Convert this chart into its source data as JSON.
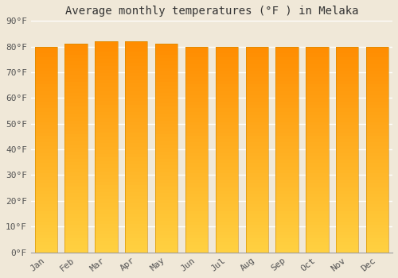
{
  "title": "Average monthly temperatures (°F ) in Melaka",
  "months": [
    "Jan",
    "Feb",
    "Mar",
    "Apr",
    "May",
    "Jun",
    "Jul",
    "Aug",
    "Sep",
    "Oct",
    "Nov",
    "Dec"
  ],
  "values": [
    80,
    81,
    82,
    82,
    81,
    80,
    80,
    80,
    80,
    80,
    80,
    80
  ],
  "ylim": [
    0,
    90
  ],
  "yticks": [
    0,
    10,
    20,
    30,
    40,
    50,
    60,
    70,
    80,
    90
  ],
  "ytick_labels": [
    "0°F",
    "10°F",
    "20°F",
    "30°F",
    "40°F",
    "50°F",
    "60°F",
    "70°F",
    "80°F",
    "90°F"
  ],
  "bar_color_bottom": "#FFD040",
  "bar_color_top": "#FF8C00",
  "bar_edge_color": "#CC8800",
  "background_color": "#f0e8d8",
  "grid_color": "#ffffff",
  "title_fontsize": 10,
  "tick_fontsize": 8,
  "font_family": "monospace",
  "title_color": "#333333",
  "tick_color": "#555555"
}
